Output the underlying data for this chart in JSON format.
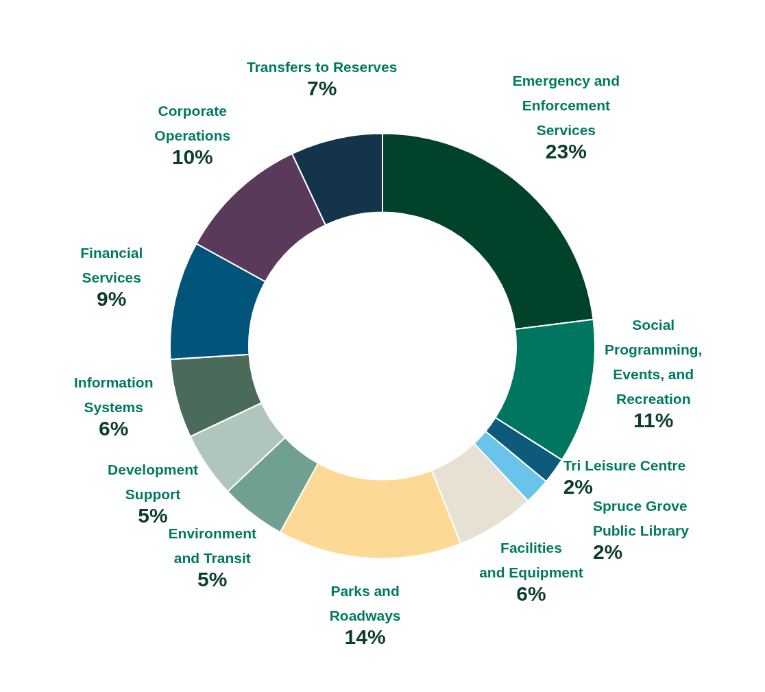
{
  "chart_data": {
    "type": "donut",
    "categories": [
      "Emergency and\nEnforcement\nServices",
      "Social\nProgramming,\nEvents, and\nRecreation",
      "Tri Leisure Centre",
      "Spruce Grove\nPublic Library",
      "Facilities\nand Equipment",
      "Parks and\nRoadways",
      "Environment\nand Transit",
      "Development\nSupport",
      "Information\nSystems",
      "Financial\nServices",
      "Corporate\nOperations",
      "Transfers to Reserves"
    ],
    "values": [
      23,
      11,
      2,
      2,
      6,
      14,
      5,
      5,
      6,
      9,
      10,
      7
    ],
    "value_labels": [
      "23%",
      "11%",
      "2%",
      "2%",
      "6%",
      "14%",
      "5%",
      "5%",
      "6%",
      "9%",
      "10%",
      "7%"
    ],
    "colors": [
      "#00432a",
      "#007560",
      "#0d5a7a",
      "#6ac3ea",
      "#e6e1d3",
      "#fcd994",
      "#6fa090",
      "#b0c6bd",
      "#4a6b59",
      "#02557a",
      "#5a3a5a",
      "#13344a"
    ]
  }
}
